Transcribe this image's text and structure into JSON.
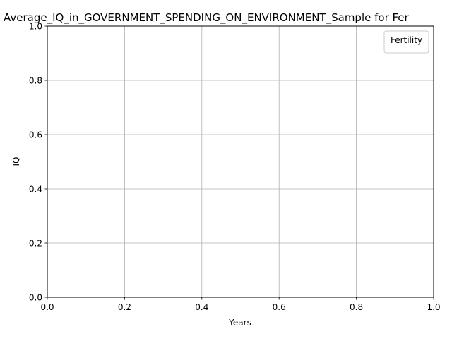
{
  "chart_data": {
    "type": "line",
    "title": "Average_IQ_in_GOVERNMENT_SPENDING_ON_ENVIRONMENT_Sample for Fer",
    "xlabel": "Years",
    "ylabel": "IQ",
    "xlim": [
      0.0,
      1.0
    ],
    "ylim": [
      0.0,
      1.0
    ],
    "xticks": [
      "0.0",
      "0.2",
      "0.4",
      "0.6",
      "0.8",
      "1.0"
    ],
    "yticks": [
      "0.0",
      "0.2",
      "0.4",
      "0.6",
      "0.8",
      "1.0"
    ],
    "grid": true,
    "legend": {
      "title": "Fertility",
      "placement": "top-right",
      "entries": []
    },
    "series": []
  }
}
